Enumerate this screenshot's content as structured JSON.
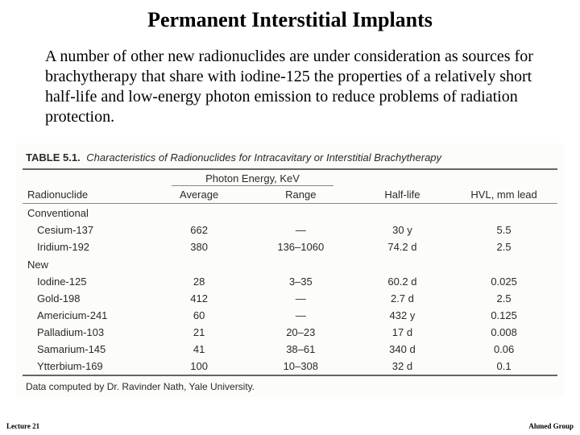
{
  "title": "Permanent Interstitial Implants",
  "paragraph": "A number of other new radionuclides are under consideration as sources for brachytherapy that share with iodine-125 the properties of a relatively short half-life and low-energy photon emission to reduce problems of radiation protection.",
  "table": {
    "caption_label": "TABLE 5.1.",
    "caption_text": "Characteristics of Radionuclides for Intracavitary or Interstitial Brachytherapy",
    "group_header": "Photon Energy, KeV",
    "columns": [
      "Radionuclide",
      "Average",
      "Range",
      "Half-life",
      "HVL, mm lead"
    ],
    "col_widths": [
      "24%",
      "18%",
      "20%",
      "18%",
      "20%"
    ],
    "sections": [
      {
        "label": "Conventional",
        "rows": [
          {
            "name": "Cesium-137",
            "avg": "662",
            "range": "—",
            "half": "30 y",
            "hvl": "5.5"
          },
          {
            "name": "Iridium-192",
            "avg": "380",
            "range": "136–1060",
            "half": "74.2 d",
            "hvl": "2.5"
          }
        ]
      },
      {
        "label": "New",
        "rows": [
          {
            "name": "Iodine-125",
            "avg": "28",
            "range": "3–35",
            "half": "60.2 d",
            "hvl": "0.025"
          },
          {
            "name": "Gold-198",
            "avg": "412",
            "range": "—",
            "half": "2.7 d",
            "hvl": "2.5"
          },
          {
            "name": "Americium-241",
            "avg": "60",
            "range": "—",
            "half": "432 y",
            "hvl": "0.125"
          },
          {
            "name": "Palladium-103",
            "avg": "21",
            "range": "20–23",
            "half": "17 d",
            "hvl": "0.008"
          },
          {
            "name": "Samarium-145",
            "avg": "41",
            "range": "38–61",
            "half": "340 d",
            "hvl": "0.06"
          },
          {
            "name": "Ytterbium-169",
            "avg": "100",
            "range": "10–308",
            "half": "32 d",
            "hvl": "0.1"
          }
        ]
      }
    ],
    "footnote": "Data computed by Dr. Ravinder Nath, Yale University."
  },
  "footer_left": "Lecture 21",
  "footer_right": "Ahmed Group"
}
